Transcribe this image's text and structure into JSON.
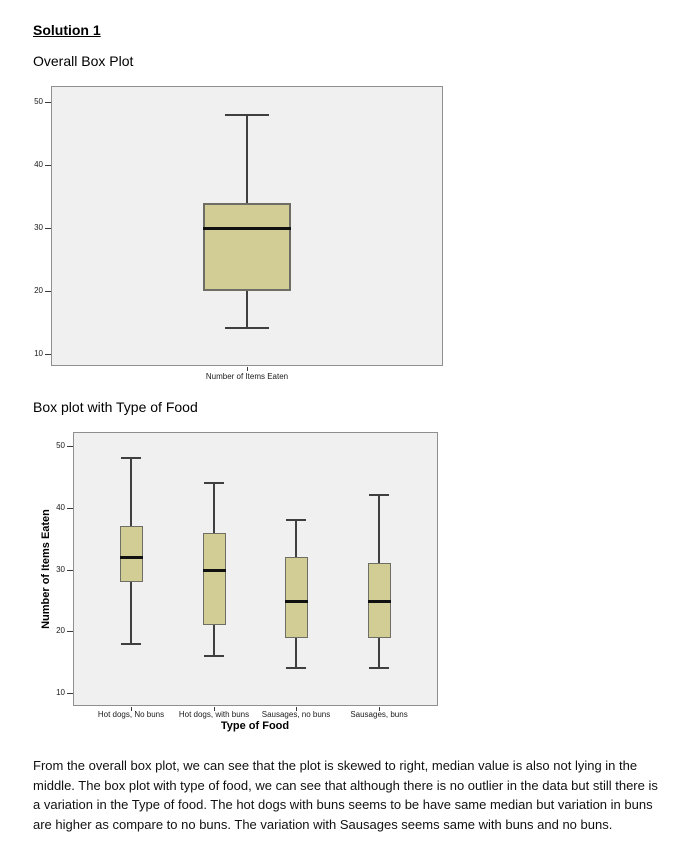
{
  "page": {
    "heading": "Solution 1",
    "subheading1": "Overall Box Plot",
    "subheading2": "Box plot with Type of Food",
    "paragraph": "From the overall box plot, we can see that the plot is skewed to right, median value is also not lying in the middle. The box plot with type of food, we can see that although there is no outlier in the data but still there is a variation in the Type of food. The hot dogs with buns seems to be have same median but variation in buns are higher as compare to no buns. The variation with Sausages seems same with buns and no buns."
  },
  "colors": {
    "box_fill": "#d2cc95",
    "box_border": "#6e6e64",
    "median": "#111111",
    "whisker": "#3f3f3f",
    "plot_bg": "#f0f0f0",
    "plot_border": "#8f8f8f",
    "tick": "#3a3a3a"
  },
  "chart_data": [
    {
      "type": "box",
      "title": "Overall Box Plot",
      "xlabel": "",
      "ylabel": "",
      "yticks": [
        10,
        20,
        30,
        40,
        50
      ],
      "ylim": [
        10,
        50
      ],
      "grid": false,
      "legend": false,
      "categories": [
        "Number of Items Eaten"
      ],
      "series": [
        {
          "name": "Number of Items Eaten",
          "min": 14,
          "q1": 20,
          "median": 30,
          "q3": 34,
          "max": 48
        }
      ]
    },
    {
      "type": "box",
      "title": "Box plot with Type of Food",
      "xlabel": "Type of Food",
      "ylabel": "Number of Items Eaten",
      "yticks": [
        10,
        20,
        30,
        40,
        50
      ],
      "ylim": [
        10,
        50
      ],
      "grid": false,
      "legend": false,
      "categories": [
        "Hot dogs, No buns",
        "Hot dogs, with buns",
        "Sausages, no buns",
        "Sausages, buns"
      ],
      "series": [
        {
          "name": "Hot dogs, No buns",
          "min": 18,
          "q1": 28,
          "median": 32,
          "q3": 37,
          "max": 48
        },
        {
          "name": "Hot dogs, with buns",
          "min": 16,
          "q1": 21,
          "median": 30,
          "q3": 36,
          "max": 44
        },
        {
          "name": "Sausages, no buns",
          "min": 14,
          "q1": 19,
          "median": 25,
          "q3": 32,
          "max": 38
        },
        {
          "name": "Sausages, buns",
          "min": 14,
          "q1": 19,
          "median": 25,
          "q3": 31,
          "max": 42
        }
      ]
    }
  ]
}
